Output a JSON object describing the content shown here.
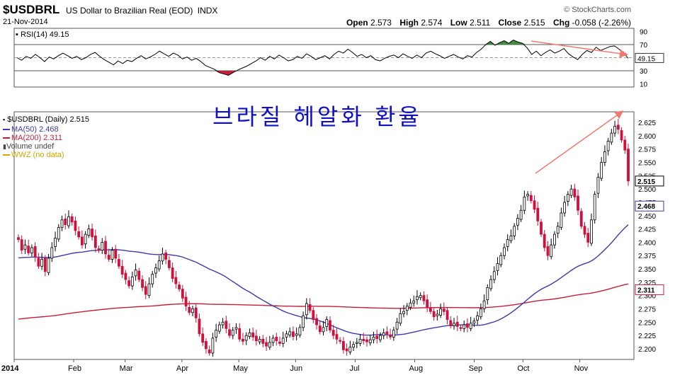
{
  "header": {
    "symbol": "$USDBRL",
    "description": "US Dollar to Brazilian Real (EOD)",
    "exchange": "INDX",
    "date": "21-Nov-2014",
    "brand": "© StockCharts.com",
    "open_label": "Open",
    "open": "2.573",
    "high_label": "High",
    "high": "2.574",
    "low_label": "Low",
    "low": "2.511",
    "close_label": "Close",
    "close": "2.515",
    "chg_label": "Chg",
    "chg": "-0.058 (-2.26%)"
  },
  "annotation_text": "브라질 헤알화 환율",
  "legend": {
    "price": "$USDBRL (Daily) 2.515",
    "ma50": "MA(50) 2.468",
    "ma200": "MA(200) 2.311",
    "volume": "Volume undef",
    "wwz": "WWZ (no data)"
  },
  "colors": {
    "up": "#000000",
    "down": "#d0103a",
    "ma50": "#3a3aa8",
    "ma200": "#c21f3a",
    "rsi": "#000000",
    "rsi_overbought": "#3a8a3a",
    "rsi_oversold": "#c21f3a",
    "arrow": "#f07a70",
    "annotation": "#1010c8"
  },
  "chart_data": [
    {
      "type": "line",
      "title": "RSI(14) 49.15",
      "ylim": [
        0,
        100
      ],
      "yticks": [
        "90",
        "70",
        "50",
        "30",
        "10"
      ],
      "reference_lines": [
        70,
        50,
        30
      ],
      "last_value_label": "49.15",
      "series": [
        {
          "name": "RSI(14)",
          "values": [
            50,
            46,
            52,
            49,
            55,
            50,
            44,
            51,
            48,
            53,
            57,
            53,
            49,
            52,
            47,
            50,
            55,
            58,
            52,
            47,
            43,
            39,
            45,
            41,
            46,
            44,
            49,
            53,
            48,
            51,
            55,
            60,
            56,
            52,
            57,
            54,
            48,
            51,
            46,
            49,
            44,
            38,
            35,
            32,
            27,
            25,
            23,
            27,
            31,
            34,
            37,
            41,
            45,
            50,
            46,
            52,
            48,
            54,
            50,
            45,
            47,
            52,
            49,
            56,
            52,
            47,
            50,
            53,
            48,
            55,
            60,
            57,
            63,
            58,
            52,
            55,
            50,
            53,
            47,
            45,
            49,
            52,
            54,
            50,
            56,
            52,
            49,
            54,
            50,
            57,
            60,
            56,
            53,
            49,
            52,
            55,
            51,
            48,
            53,
            51,
            58,
            63,
            70,
            75,
            69,
            73,
            76,
            72,
            77,
            74,
            72,
            65,
            55,
            60,
            53,
            58,
            62,
            57,
            60,
            64,
            56,
            51,
            47,
            55,
            61,
            58,
            66,
            61,
            64,
            67,
            68,
            63,
            57,
            49
          ]
        }
      ]
    },
    {
      "type": "candlestick",
      "title": "$USDBRL (Daily) 2.515",
      "ylim": [
        2.18,
        2.645
      ],
      "yticks": [
        "2.625",
        "2.600",
        "2.575",
        "2.550",
        "2.525",
        "2.500",
        "2.475",
        "2.450",
        "2.425",
        "2.400",
        "2.375",
        "2.350",
        "2.325",
        "2.300",
        "2.275",
        "2.250",
        "2.225",
        "2.200"
      ],
      "x_labels": [
        "2014",
        "Feb",
        "Mar",
        "Apr",
        "May",
        "Jun",
        "Jul",
        "Aug",
        "Sep",
        "Oct",
        "Nov"
      ],
      "close_label": "2.515",
      "ma50_label": "2.468",
      "ma200_label": "2.311",
      "closes": [
        2.405,
        2.385,
        2.395,
        2.38,
        2.39,
        2.372,
        2.355,
        2.368,
        2.345,
        2.37,
        2.39,
        2.408,
        2.428,
        2.442,
        2.433,
        2.448,
        2.438,
        2.422,
        2.41,
        2.395,
        2.415,
        2.425,
        2.41,
        2.39,
        2.385,
        2.4,
        2.378,
        2.368,
        2.385,
        2.37,
        2.355,
        2.34,
        2.33,
        2.318,
        2.335,
        2.348,
        2.33,
        2.315,
        2.302,
        2.322,
        2.34,
        2.352,
        2.365,
        2.378,
        2.368,
        2.352,
        2.332,
        2.322,
        2.312,
        2.295,
        2.28,
        2.268,
        2.275,
        2.258,
        2.228,
        2.212,
        2.2,
        2.192,
        2.22,
        2.235,
        2.245,
        2.25,
        2.238,
        2.225,
        2.235,
        2.24,
        2.218,
        2.214,
        2.225,
        2.23,
        2.222,
        2.215,
        2.218,
        2.21,
        2.205,
        2.212,
        2.22,
        2.215,
        2.21,
        2.22,
        2.228,
        2.232,
        2.223,
        2.228,
        2.24,
        2.262,
        2.285,
        2.272,
        2.255,
        2.245,
        2.232,
        2.24,
        2.255,
        2.235,
        2.225,
        2.218,
        2.214,
        2.198,
        2.196,
        2.203,
        2.208,
        2.212,
        2.218,
        2.215,
        2.213,
        2.217,
        2.222,
        2.219,
        2.225,
        2.23,
        2.228,
        2.222,
        2.235,
        2.25,
        2.266,
        2.27,
        2.28,
        2.286,
        2.29,
        2.298,
        2.3,
        2.29,
        2.278,
        2.27,
        2.26,
        2.265,
        2.275,
        2.27,
        2.255,
        2.243,
        2.248,
        2.242,
        2.238,
        2.245,
        2.24,
        2.248,
        2.252,
        2.262,
        2.275,
        2.29,
        2.315,
        2.33,
        2.345,
        2.36,
        2.375,
        2.39,
        2.405,
        2.412,
        2.43,
        2.445,
        2.46,
        2.485,
        2.49,
        2.478,
        2.462,
        2.44,
        2.415,
        2.39,
        2.375,
        2.395,
        2.415,
        2.43,
        2.455,
        2.475,
        2.49,
        2.5,
        2.485,
        2.46,
        2.43,
        2.415,
        2.4,
        2.442,
        2.49,
        2.522,
        2.55,
        2.57,
        2.59,
        2.605,
        2.618,
        2.612,
        2.592,
        2.573,
        2.515
      ]
    }
  ]
}
